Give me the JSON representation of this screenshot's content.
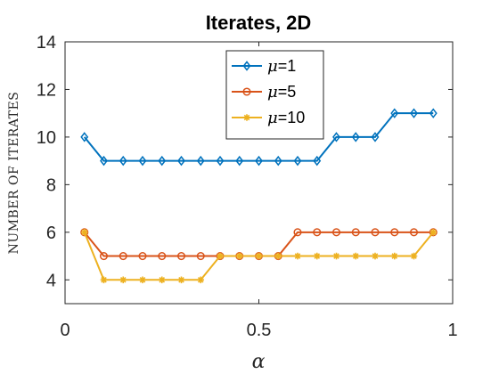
{
  "chart_data": {
    "type": "line",
    "title": "Iterates, 2D",
    "xlabel": "α",
    "ylabel": "NUMBER OF ITERATES",
    "xlim": [
      0,
      1
    ],
    "ylim": [
      3,
      14
    ],
    "xticks": [
      0,
      0.5,
      1
    ],
    "xtick_labels": [
      "0",
      "0.5",
      "1"
    ],
    "yticks": [
      4,
      6,
      8,
      10,
      12,
      14
    ],
    "ytick_labels": [
      "4",
      "6",
      "8",
      "10",
      "12",
      "14"
    ],
    "grid": false,
    "legend_position": "top-center",
    "x": [
      0.05,
      0.1,
      0.15,
      0.2,
      0.25,
      0.3,
      0.35,
      0.4,
      0.45,
      0.5,
      0.55,
      0.6,
      0.65,
      0.7,
      0.75,
      0.8,
      0.85,
      0.9,
      0.95
    ],
    "series": [
      {
        "name": "μ=1",
        "legend_symbol": "μ",
        "legend_rest": "=1",
        "color": "#0072BD",
        "marker": "diamond",
        "values": [
          10,
          9,
          9,
          9,
          9,
          9,
          9,
          9,
          9,
          9,
          9,
          9,
          9,
          10,
          10,
          10,
          11,
          11,
          11
        ]
      },
      {
        "name": "μ=5",
        "legend_symbol": "μ",
        "legend_rest": "=5",
        "color": "#D95319",
        "marker": "circle",
        "values": [
          6,
          5,
          5,
          5,
          5,
          5,
          5,
          5,
          5,
          5,
          5,
          6,
          6,
          6,
          6,
          6,
          6,
          6,
          6
        ]
      },
      {
        "name": "μ=10",
        "legend_symbol": "μ",
        "legend_rest": "=10",
        "color": "#EDB120",
        "marker": "star",
        "values": [
          6,
          4,
          4,
          4,
          4,
          4,
          4,
          5,
          5,
          5,
          5,
          5,
          5,
          5,
          5,
          5,
          5,
          5,
          6
        ]
      }
    ]
  }
}
